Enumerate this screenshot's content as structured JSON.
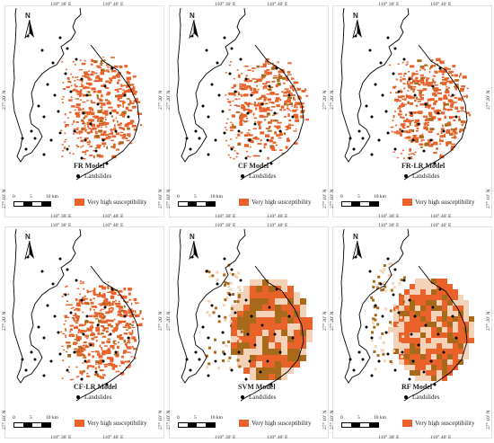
{
  "colors": {
    "very_high": "#e8622a",
    "high": "#a86a1a",
    "moderate": "#f3d2b8",
    "boundary": "#000000",
    "landslide": "#000000"
  },
  "axes": {
    "top_left": "110° 30′ E",
    "top_right": "110° 40′ E",
    "left_top": "27° 20′ N",
    "left_bottom": "27° 10′ N"
  },
  "north_label": "N",
  "legend": {
    "landslides": "Landslides",
    "very_high": "Very high susceptibility"
  },
  "scale": {
    "v0": "0",
    "v1": "5",
    "v2": "10 km"
  },
  "panels": [
    {
      "title": "FR Model"
    },
    {
      "title": "CF Model"
    },
    {
      "title": "FR-LR Model"
    },
    {
      "title": "CF-LR Model"
    },
    {
      "title": "SVM Model"
    },
    {
      "title": "RF Model"
    }
  ]
}
